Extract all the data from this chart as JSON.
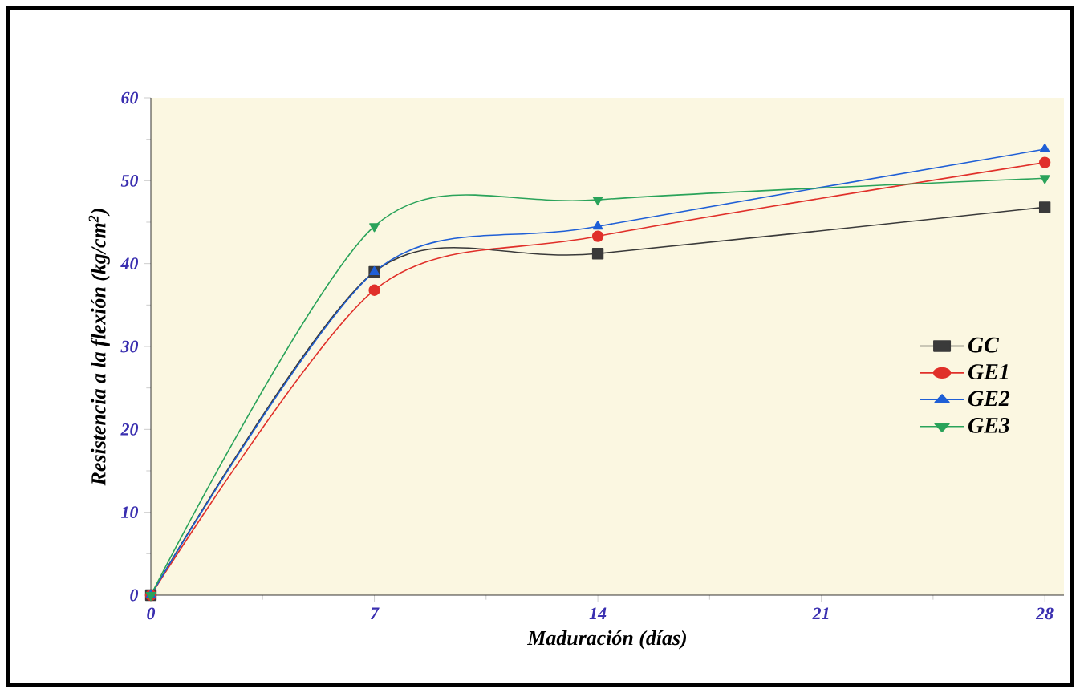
{
  "chart_data": {
    "type": "line",
    "xlabel": "Maduración (días)",
    "ylabel": "Resistencia a la flexión (kg/cm$^{2}$)",
    "x": [
      0,
      7,
      14,
      28
    ],
    "series": [
      {
        "name": "GC",
        "color": "#3a3a3a",
        "marker": "square",
        "values": [
          0,
          39,
          41.2,
          46.8
        ]
      },
      {
        "name": "GE1",
        "color": "#e0302a",
        "marker": "circle",
        "values": [
          0,
          36.8,
          43.3,
          52.2
        ]
      },
      {
        "name": "GE2",
        "color": "#1f5fd6",
        "marker": "triangle",
        "values": [
          0,
          39,
          44.5,
          53.8
        ]
      },
      {
        "name": "GE3",
        "color": "#2aa35a",
        "marker": "triangle down",
        "values": [
          0,
          44.5,
          47.7,
          50.3
        ]
      }
    ],
    "xlim": [
      0,
      28.6
    ],
    "ylim": [
      0,
      60
    ],
    "xticks": [
      0,
      7,
      14,
      21,
      28
    ],
    "yticks": [
      0,
      10,
      20,
      30,
      40,
      50,
      60
    ],
    "grid": false,
    "legend": "right",
    "line_style": "solid"
  }
}
